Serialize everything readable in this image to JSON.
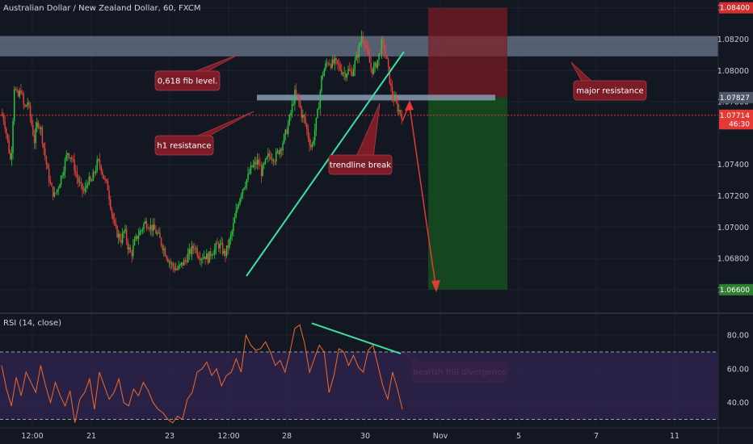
{
  "chart_data": [
    {
      "type": "candlestick",
      "title": "Australian Dollar / New Zealand Dollar, 60, FXCM",
      "ylim": [
        1.0645,
        1.0845
      ],
      "y_ticks": [
        "1.08400",
        "1.08200",
        "1.08000",
        "1.07800",
        "1.07400",
        "1.07200",
        "1.07000",
        "1.06800",
        "1.06600"
      ],
      "x_ticks": [
        "12:00",
        "21",
        "23",
        "12:00",
        "28",
        "30",
        "Nov",
        "5",
        "7",
        "11"
      ],
      "price_tags": [
        {
          "label": "1.08400",
          "value": 1.084,
          "color": "#d32f2f"
        },
        {
          "label": "1.07827",
          "value": 1.07827,
          "color": "#4e5566"
        },
        {
          "label": "1.07714",
          "value": 1.07714,
          "color": "#e53935"
        },
        {
          "label": "46:30",
          "value": 1.0766,
          "color": "#e53935"
        },
        {
          "label": "1.06600",
          "value": 1.066,
          "color": "#2e7d32"
        }
      ],
      "close_path": [
        1.0773,
        1.0768,
        1.0755,
        1.074,
        1.079,
        1.0782,
        1.0788,
        1.0775,
        1.078,
        1.0768,
        1.0755,
        1.0768,
        1.0762,
        1.0748,
        1.0735,
        1.0725,
        1.072,
        1.0725,
        1.0732,
        1.074,
        1.0748,
        1.0745,
        1.0738,
        1.073,
        1.0725,
        1.0722,
        1.073,
        1.0728,
        1.0735,
        1.0742,
        1.0738,
        1.073,
        1.0725,
        1.0712,
        1.07,
        1.0695,
        1.0692,
        1.0698,
        1.0688,
        1.0682,
        1.069,
        1.0695,
        1.0698,
        1.0703,
        1.0702,
        1.07,
        1.0698,
        1.0695,
        1.069,
        1.0685,
        1.068,
        1.0676,
        1.0674,
        1.0673,
        1.0676,
        1.0678,
        1.0682,
        1.0685,
        1.0688,
        1.0683,
        1.0681,
        1.0682,
        1.068,
        1.0684,
        1.0686,
        1.0689,
        1.0687,
        1.0682,
        1.0688,
        1.0695,
        1.0705,
        1.0715,
        1.0723,
        1.0728,
        1.0732,
        1.0738,
        1.074,
        1.0742,
        1.0735,
        1.074,
        1.0745,
        1.0746,
        1.0744,
        1.0748,
        1.0752,
        1.0758,
        1.0765,
        1.0775,
        1.0785,
        1.0782,
        1.0772,
        1.0768,
        1.0758,
        1.075,
        1.0762,
        1.0775,
        1.0795,
        1.0802,
        1.0806,
        1.0804,
        1.0805,
        1.0803,
        1.08,
        1.0798,
        1.08,
        1.0798,
        1.0805,
        1.0812,
        1.0822,
        1.0818,
        1.0808,
        1.08,
        1.0802,
        1.0808,
        1.0817,
        1.0813,
        1.08,
        1.0785,
        1.078,
        1.0775,
        1.0772
      ],
      "zones": {
        "resistance": [
          1.0809,
          1.0822
        ],
        "h1_resistance": 1.07827,
        "short_entry": 1.07827,
        "stop_loss": 1.084,
        "take_profit": 1.066
      },
      "annotations": {
        "fib": "0,618 fib level.",
        "h1": "h1 resistance",
        "trendline": "trendline break",
        "major": "major resistance"
      },
      "colors": {
        "up": "#26c93c",
        "down": "#e8413d",
        "resistance": "#8a9bb3",
        "trend": "#3ce0a0",
        "arrow": "#e53935",
        "annotation": "#7b1c26"
      },
      "grid": true
    },
    {
      "type": "line",
      "title": "RSI (14, close)",
      "ylim": [
        25,
        92
      ],
      "y_ticks": [
        "80.00",
        "60.00",
        "40.00"
      ],
      "bands": [
        30,
        70
      ],
      "line_color": "#f0692a",
      "band_color": "#2c2249",
      "values": [
        62,
        48,
        38,
        55,
        44,
        58,
        52,
        46,
        62,
        50,
        40,
        52,
        44,
        38,
        47,
        28,
        42,
        46,
        54,
        36,
        58,
        50,
        42,
        46,
        54,
        40,
        38,
        48,
        44,
        52,
        47,
        40,
        36,
        34,
        30,
        28,
        32,
        30,
        42,
        46,
        58,
        60,
        64,
        56,
        60,
        50,
        56,
        58,
        66,
        58,
        80,
        74,
        71,
        72,
        76,
        70,
        62,
        65,
        58,
        70,
        84,
        86,
        75,
        58,
        66,
        74,
        70,
        46,
        56,
        72,
        70,
        62,
        68,
        61,
        58,
        71,
        74,
        62,
        50,
        42,
        58,
        48,
        36
      ],
      "divergence_label": "bearish RSI divergence"
    }
  ]
}
